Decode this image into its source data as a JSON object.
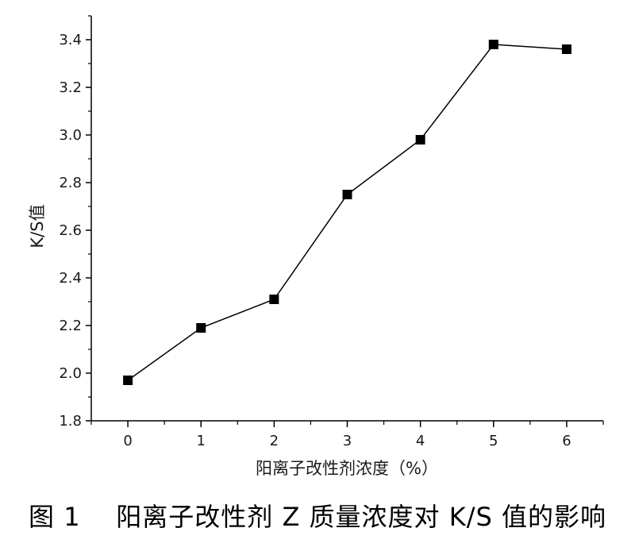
{
  "chart_data": {
    "type": "line",
    "x": [
      0,
      1,
      2,
      3,
      4,
      5,
      6
    ],
    "y": [
      1.97,
      2.19,
      2.31,
      2.75,
      2.98,
      3.38,
      3.36
    ],
    "xlabel": "阳离子改性剂浓度（%）",
    "ylabel": "K/S值",
    "xlim": [
      -0.5,
      6.5
    ],
    "ylim": [
      1.8,
      3.5
    ],
    "x_ticks": [
      "0",
      "1",
      "2",
      "3",
      "4",
      "5",
      "6"
    ],
    "y_ticks": [
      "1.8",
      "2.0",
      "2.2",
      "2.4",
      "2.6",
      "2.8",
      "3.0",
      "3.2",
      "3.4"
    ],
    "marker": "square",
    "grid": false,
    "colors": {
      "line": "#000000",
      "axis": "#000000"
    }
  },
  "caption": {
    "label": "图 1",
    "text": "阳离子改性剂 Z 质量浓度对 K/S 值的影响"
  }
}
